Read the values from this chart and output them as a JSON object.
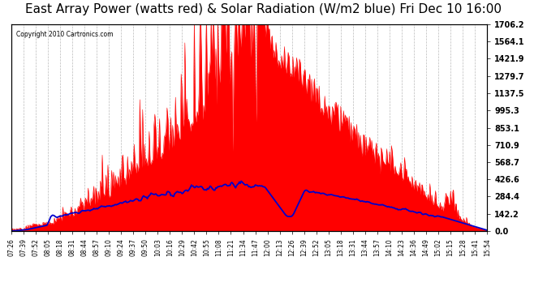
{
  "title": "East Array Power (watts red) & Solar Radiation (W/m2 blue) Fri Dec 10 16:00",
  "copyright": "Copyright 2010 Cartronics.com",
  "title_fontsize": 11,
  "ylabel_right_ticks": [
    0.0,
    142.2,
    284.4,
    426.6,
    568.7,
    710.9,
    853.1,
    995.3,
    1137.5,
    1279.7,
    1421.9,
    1564.1,
    1706.2
  ],
  "ymax": 1706.2,
  "background_color": "#ffffff",
  "plot_bg_color": "#ffffff",
  "grid_color": "#aaaaaa",
  "red_color": "#ff0000",
  "blue_color": "#0000cc",
  "time_labels": [
    "07:26",
    "07:39",
    "07:52",
    "08:05",
    "08:18",
    "08:31",
    "08:44",
    "08:57",
    "09:10",
    "09:24",
    "09:37",
    "09:50",
    "10:03",
    "10:16",
    "10:29",
    "10:42",
    "10:55",
    "11:08",
    "11:21",
    "11:34",
    "11:47",
    "12:00",
    "12:13",
    "12:26",
    "12:39",
    "12:52",
    "13:05",
    "13:18",
    "13:31",
    "13:44",
    "13:57",
    "14:10",
    "14:23",
    "14:36",
    "14:49",
    "15:02",
    "15:15",
    "15:28",
    "15:41",
    "15:54"
  ]
}
